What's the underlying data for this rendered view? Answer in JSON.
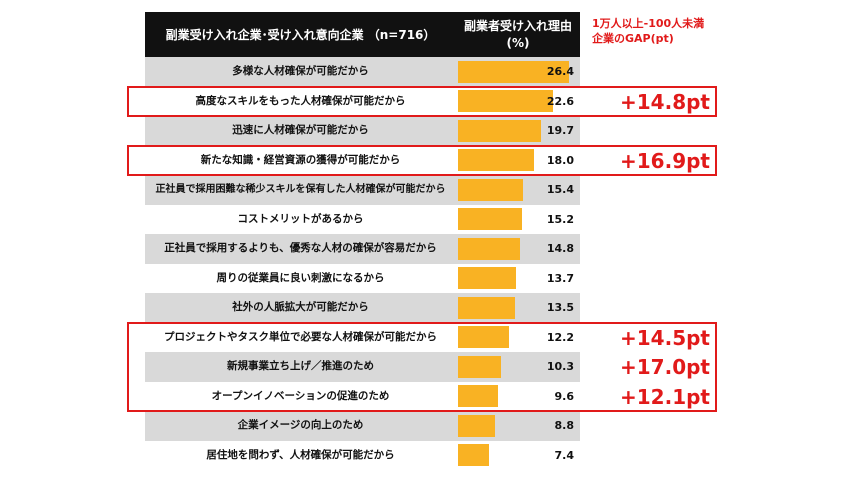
{
  "header": {
    "left_title": "副業受け入れ企業･受け入れ意向企業 （n=716）",
    "right_title_line1": "副業者受け入れ理由",
    "right_title_line2": "(%)"
  },
  "gap_note": {
    "line1": "1万人以上-100人未満",
    "line2": "企業のGAP(pt)"
  },
  "colors": {
    "bar": "#f9b223",
    "row_gray": "#d9d9d9",
    "row_white": "#ffffff",
    "header_bg": "#111111",
    "highlight": "#e11a1a"
  },
  "chart_data": {
    "type": "bar",
    "orientation": "horizontal",
    "title": "副業受け入れ企業･受け入れ意向企業 （n=716）",
    "value_header": "副業者受け入れ理由 (%)",
    "categories": [
      "多様な人材確保が可能だから",
      "高度なスキルをもった人材確保が可能だから",
      "迅速に人材確保が可能だから",
      "新たな知識・経営資源の獲得が可能だから",
      "正社員で採用困難な稀少スキルを保有した人材確保が可能だから",
      "コストメリットがあるから",
      "正社員で採用するよりも、優秀な人材の確保が容易だから",
      "周りの従業員に良い刺激になるから",
      "社外の人脈拡大が可能だから",
      "プロジェクトやタスク単位で必要な人材確保が可能だから",
      "新規事業立ち上げ／推進のため",
      "オープンイノベーションの促進のため",
      "企業イメージの向上のため",
      "居住地を問わず、人材確保が可能だから"
    ],
    "values": [
      26.4,
      22.6,
      19.7,
      18.0,
      15.4,
      15.2,
      14.8,
      13.7,
      13.5,
      12.2,
      10.3,
      9.6,
      8.8,
      7.4
    ],
    "value_labels": [
      "26.4",
      "22.6",
      "19.7",
      "18.0",
      "15.4",
      "15.2",
      "14.8",
      "13.7",
      "13.5",
      "12.2",
      "10.3",
      "9.6",
      "8.8",
      "7.4"
    ],
    "xlim": [
      0,
      30
    ],
    "gap_annotations": [
      {
        "category_index": 1,
        "label": "+14.8pt"
      },
      {
        "category_index": 3,
        "label": "+16.9pt"
      },
      {
        "category_index": 9,
        "label": "+14.5pt"
      },
      {
        "category_index": 10,
        "label": "+17.0pt"
      },
      {
        "category_index": 11,
        "label": "+12.1pt"
      }
    ],
    "highlight_groups": [
      [
        1
      ],
      [
        3
      ],
      [
        9,
        10,
        11
      ]
    ]
  }
}
